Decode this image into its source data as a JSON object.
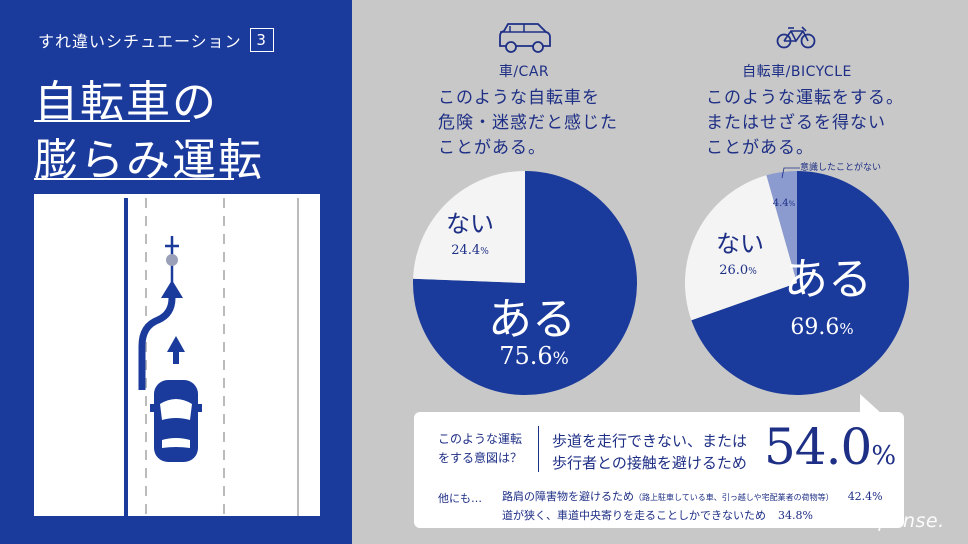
{
  "header": {
    "kicker": "すれ違いシチュエーション",
    "number": "3",
    "title_line1": "自転車の",
    "title_line2": "膨らみ運転"
  },
  "colors": {
    "navy": "#1a3a9c",
    "pale": "#f4f4f4",
    "light_blue": "#8b9bd0",
    "background": "#c8c8c8"
  },
  "icons": {
    "car": "car-icon",
    "bicycle": "bicycle-icon"
  },
  "chart_data": [
    {
      "type": "pie",
      "label": "車/CAR",
      "question": [
        "このような自転車を",
        "危険・迷惑だと感じた",
        "ことがある。"
      ],
      "slices": [
        {
          "name": "ある",
          "value": 75.6,
          "display": "75.6%"
        },
        {
          "name": "ない",
          "value": 24.4,
          "display": "24.4%"
        }
      ]
    },
    {
      "type": "pie",
      "label": "自転車/BICYCLE",
      "question": [
        "このような運転をする。",
        "またはせざるを得ない",
        "ことがある。"
      ],
      "slices": [
        {
          "name": "ある",
          "value": 69.6,
          "display": "69.6%"
        },
        {
          "name": "ない",
          "value": 26.0,
          "display": "26.0%"
        },
        {
          "name": "意識したことがない",
          "value": 4.4,
          "display": "4.4%"
        }
      ]
    }
  ],
  "reason_box": {
    "question": [
      "このような運転",
      "をする意図は？"
    ],
    "main_reason": [
      "歩道を走行できない、または",
      "歩行者との接触を避けるため"
    ],
    "main_pct": "54.0",
    "pct_sign": "%",
    "other_label": "他にも…",
    "reasons": [
      {
        "text": "路肩の障害物を避けるため",
        "note": "（路上駐車している車、引っ越しや宅配業者の荷物等）",
        "pct": "42.4%"
      },
      {
        "text": "道が狭く、車道中央寄りを走ることしかできないため",
        "note": "",
        "pct": "34.8%"
      }
    ]
  },
  "watermark": "Response."
}
